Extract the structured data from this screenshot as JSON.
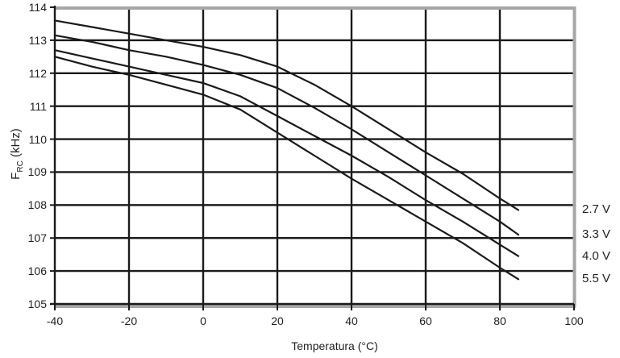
{
  "chart_data": {
    "type": "line",
    "title": "",
    "xlabel": "Temperatura (°C)",
    "ylabel_parts": {
      "main": "F",
      "sub": "RC",
      "rest": " (kHz)"
    },
    "xlim": [
      -40,
      100
    ],
    "ylim": [
      105,
      114
    ],
    "grid": "on",
    "legend_position": "right-of-plot",
    "x_ticks": [
      -40,
      -20,
      0,
      20,
      40,
      60,
      80,
      100
    ],
    "x_tick_labels": [
      "-40",
      "-20",
      "0",
      "20",
      "40",
      "60",
      "80",
      "100"
    ],
    "y_ticks": [
      105,
      106,
      107,
      108,
      109,
      110,
      111,
      112,
      113,
      114
    ],
    "y_tick_labels": [
      "105",
      "106",
      "107",
      "108",
      "109",
      "110",
      "111",
      "112",
      "113",
      "114"
    ],
    "x": [
      -40,
      -30,
      -20,
      -10,
      0,
      10,
      20,
      30,
      40,
      50,
      60,
      70,
      80,
      85
    ],
    "series": [
      {
        "name": "2.7 V",
        "values": [
          113.6,
          113.4,
          113.2,
          113.0,
          112.8,
          112.55,
          112.2,
          111.65,
          111.0,
          110.3,
          109.6,
          108.95,
          108.2,
          107.85
        ]
      },
      {
        "name": "3.3 V",
        "values": [
          113.15,
          112.95,
          112.7,
          112.5,
          112.25,
          111.95,
          111.55,
          110.95,
          110.3,
          109.6,
          108.9,
          108.2,
          107.5,
          107.1
        ]
      },
      {
        "name": "4.0 V",
        "values": [
          112.7,
          112.45,
          112.2,
          111.95,
          111.7,
          111.3,
          110.7,
          110.1,
          109.5,
          108.85,
          108.15,
          107.5,
          106.8,
          106.45
        ]
      },
      {
        "name": "5.5 V",
        "values": [
          112.5,
          112.2,
          111.95,
          111.65,
          111.35,
          110.9,
          110.2,
          109.5,
          108.8,
          108.15,
          107.5,
          106.85,
          106.1,
          105.75
        ]
      }
    ],
    "colors": {
      "line": "#1a1a1a",
      "grid": "#1a1a1a",
      "border": "#a6a6a6",
      "text": "#1f1f1f",
      "background": "#ffffff"
    }
  }
}
